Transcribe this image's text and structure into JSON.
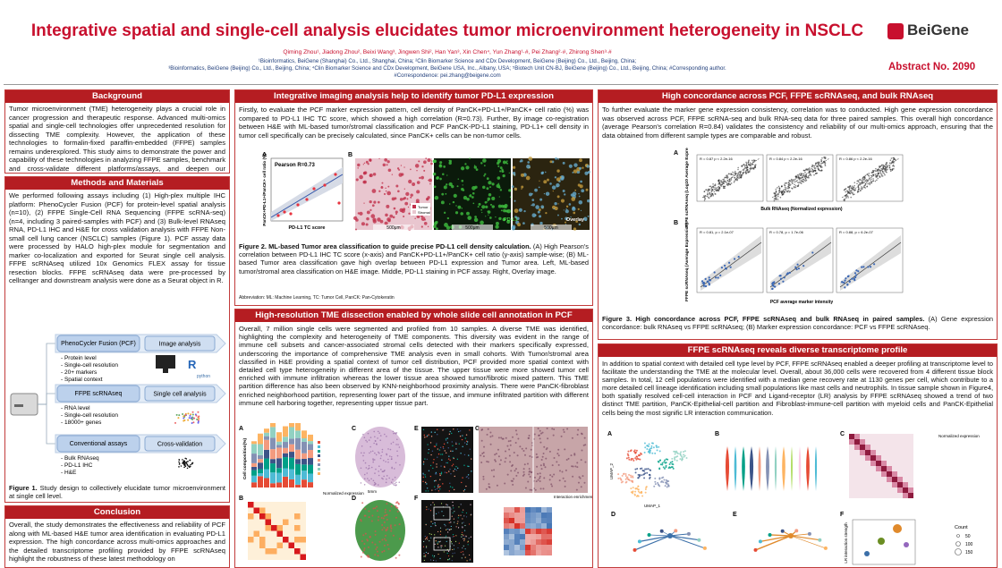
{
  "header": {
    "title": "Integrative spatial and single-cell analysis elucidates tumor microenvironment heterogeneity in NSCLC",
    "authors": "Qiming Zhou¹, Jiadong Zhou², Beixi Wang³, Jingwen Shi², Han Yan³, Xin Chen⁴, Yun Zhang¹·#, Pei Zhang²·#, Zhirong Shen³·#",
    "affiliations": [
      "¹Bioinformatics, BeiGene (Shanghai) Co., Ltd., Shanghai, China; ²Clin Biomarker Science and CDx Development, BeiGene (Beijing) Co., Ltd., Beijing, China;",
      "³Bioinformatics, BeiGene (Beijing) Co., Ltd., Beijing, China; ⁴Clin Biomarker Science and CDx Development, BeiGene USA, Inc., Albany, USA; ⁵Biotech Unit CN-BJ, BeiGene (Beijing) Co., Ltd., Beijing, China; #Corresponding author."
    ],
    "correspondence": "#Correspondence:  pei.zhang@beigene.com",
    "logo": "BeiGene",
    "abstract_no": "Abstract No. 2090"
  },
  "background": {
    "title": "Background",
    "body": "Tumor microenvironment (TME) heterogeneity plays a crucial role in cancer progression and therapeutic response. Advanced multi-omics spatial and single-cell technologies offer unprecedented resolution for dissecting TME complexity. However, the application of these technologies to formalin-fixed paraffin-embedded (FFPE) samples remains underexplored. This study aims to demonstrate the power and capability of these technologies in analyzing FFPE samples, benchmark and cross-validate different platforms/assays, and deepen our understanding of TME heterogeneity at the single-cell level and its spatial context."
  },
  "methods": {
    "title": "Methods and Materials",
    "body": "We performed following assays including (1) High-plex multiple IHC platform: PhenoCycler Fusion (PCF) for protein-level spatial analysis (n=10), (2) FFPE Single-Cell RNA Sequencing (FFPE scRNA-seq) (n=4, including 3 paired-samples with PCF) and (3) Bulk-level RNAseq RNA, PD-L1 IHC and H&E for cross validation analysis with FFPE Non-small cell lung cancer (NSCLC) samples (Figure 1). PCF assay data were processed by HALO high-plex module for segmentation and marker co-localization and exported for Seurat single cell analysis. FFPE scRNAseq utilized 10x Genomics FLEX assay for tissue resection blocks. FFPE scRNAseq data were pre-processed by cellranger and downstream analysis were done as a Seurat object in R."
  },
  "figure1": {
    "rows": [
      {
        "platform": "PhenoCycler Fusion (PCF)",
        "analysis": "Image analysis",
        "features": [
          "- Protein level",
          "- Single-cell resolution",
          "- 20+ markers",
          "- Spatial context"
        ]
      },
      {
        "platform": "FFPE scRNAseq",
        "analysis": "Single cell analysis",
        "features": [
          "- RNA level",
          "- Single-cell resolution",
          "- 18000+ genes"
        ]
      },
      {
        "platform": "Conventional assays",
        "analysis": "Cross-validation",
        "features": [
          "- Bulk RNAseq",
          "- PD-L1 IHC",
          "- H&E"
        ]
      }
    ],
    "icons": [
      "R",
      "python"
    ],
    "caption_label": "Figure 1.",
    "caption": " Study design to collectively elucidate tumor microenvironment at single cell level."
  },
  "conclusion": {
    "title": "Conclusion",
    "body": "Overall, the study demonstrates the effectiveness and reliability of PCF along with ML-based H&E tumor area identification in evaluating PD-L1 expression. The high concordance across multi-omics approaches and the detailed transcriptome profiling provided by FFPE scRNAseq highlight the robustness of these latest methodology on"
  },
  "imaging": {
    "title": "Integrative imaging analysis help to identify tumor PD-L1 expression",
    "body": "Firstly, to evaluate the PCF marker expression pattern, cell density of PanCK+PD-L1+/PanCK+ cell ratio (%) was compared to PD-L1 IHC TC score, which showed a high correlation (R=0.73). Further, By image co-registration between H&E with ML-based tumor/stromal classification and PCF PanCK-PD-L1 staining, PD-L1+ cell density in tumor cell specifically can be precisely calculated, since PanCK+ cells can be non-tumor cells.",
    "figure": {
      "panels": [
        "A",
        "B"
      ],
      "stat": "Pearson R=0.73",
      "x_label": "PD-L1 TC score",
      "y_label": "PanCK+PD-L1+/PanCK+ cell ratio (%)",
      "legend": [
        "Tumor",
        "Stromal"
      ],
      "scale": "500μm",
      "channel": "PD-L1",
      "overlay": "Overlay"
    },
    "caption_label": "Figure 2. ML-based Tumor area classification to guide precise PD-L1 cell density calculation.",
    "caption": " (A) High Pearson's correlation between PD-L1 IHC TC score (x-axis) and PanCK+PD-L1+/PanCK+ cell ratio (y-axis) sample-wise; (B) ML-based Tumor area classification gave high overlap between PD-L1 expression and Tumor area. Left, ML-based tumor/stromal area classification on H&E image. Middle, PD-L1 staining in PCF assay. Right, Overlay image.",
    "abbreviation": "Abbreviation: ML: Machine Learning, TC: Tumor Cell, PanCK: Pan-Cytokeratin"
  },
  "tme": {
    "title": "High-resolution TME dissection enabled by whole slide cell annotation in PCF",
    "body": "Overall, 7 million single cells were segmented and profiled from 10 samples. A diverse TME was identified, highlighting the complexity and heterogeneity of TME components. This diversity was evident in the range of immune cell subsets and cancer-associated stromal cells detected with their markers specifically expressed, underscoring the importance of comprehensive TME analysis even in small cohorts. With Tumor/stromal area classified in H&E providing a spatial context of tumor cell distribution, PCF provided more spatial context with detailed cell type heterogeneity in different area of the tissue. The upper tissue were more showed tumor cell enriched with immune infiltration whereas the lower tissue area showed tumor/fibrotic mixed pattern. This TME partition difference has also been observed by KNN-neighborhood proximity analysis. There were PanCK-fibroblast enriched neighborhood partition, representing lower part of the tissue, and immune infiltrated partition with different immune cell harboring together, representing upper tissue part.",
    "figure": {
      "panels": [
        "A",
        "B",
        "C",
        "D",
        "E",
        "F",
        "G"
      ],
      "y_label": "Cell composition(%)",
      "legend_title": "Normalized expression",
      "scale": "5mm",
      "interaction": "Interaction enrichment score"
    }
  },
  "concordance": {
    "title": "High concordance across PCF, FFPE scRNAseq, and bulk RNAseq",
    "body": "To further evaluate the marker gene expression consistency, correlation was to conducted. High gene expression concordance was observed across PCF, FFPE scRNA-seq and bulk RNA-seq data for three paired samples. This overall high concordance (average Pearson's correlation R=0.84) validates the consistency and reliability of our multi-omics approach, ensuring that the data obtained from different sample types are comparable and robust.",
    "figure": {
      "panels": [
        "A",
        "B"
      ],
      "stats_a": [
        "R = 0.87  p < 2.2e-16",
        "R = 0.84  p < 2.2e-16",
        "R = 0.86  p < 2.2e-16"
      ],
      "stats_b": [
        "R = 0.81,  p = 2.1e-07",
        "R = 0.78,  p = 1.7e-06",
        "R = 0.88,  p = 6.2e-07"
      ],
      "ylabel_a": "FFPE scRNAseq (Log10 Average Expression)",
      "xlabel_a": "Bulk RNAseq (Normalized expression)",
      "ylabel_b": "FFPE scRNAseq (Average Expression)",
      "xlabel_b": "PCF average marker intensity"
    },
    "caption_label": "Figure 3. High concordance across PCF, FFPE scRNAseq and bulk RNAseq in paired samples.",
    "caption": " (A) Gene expression concordance: bulk RNAseq vs FFPE scRNAseq; (B) Marker expression concordance: PCF vs FFPE scRNAseq."
  },
  "scrnaseq": {
    "title": "FFPE scRNAseq reveals diverse transcriptome profile",
    "body": "In addition to spatial context with detailed cell type level by PCF, FFPE scRNAseq enabled a deeper profiling at transcriptome level to facilitate the understanding the TME at the molecular level. Overall, about 36,000 cells were recovered from 4 different tissue block samples. In total, 12 cell populations were identified with a median gene recovery rate at 1130 genes per cell, which contribute to a more detailed cell lineage identification including small populations like mast cells and neutrophils. In tissue sample shown in Figure4, both spatially resolved cell-cell interaction in PCF and Ligand-receptor (LR) analysis by FFPE scRNAseq showed a trend of two distinct TME partition, PanCK-Epithelial-cell partition and Fibroblast-immune-cell partition with myeloid cells and PanCK-Epithelial cells being the most signific LR interaction communication.",
    "figure": {
      "panels": [
        "A",
        "B",
        "C",
        "D",
        "E",
        "F"
      ],
      "umap": [
        "UMAP_1",
        "UMAP_2"
      ],
      "legend_title": "Normalized expression",
      "count_title": "Count",
      "count_levels": [
        "50",
        "100",
        "150"
      ],
      "y_label_f": "LR interaction strength"
    }
  }
}
